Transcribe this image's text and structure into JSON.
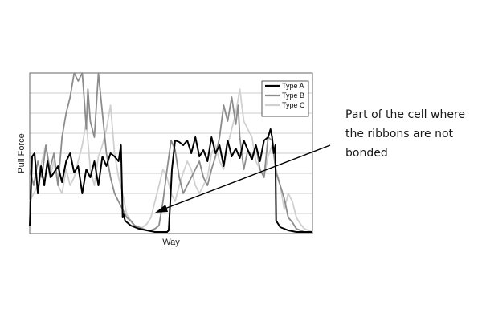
{
  "chart_data": {
    "type": "line",
    "title": "",
    "xlabel": "Way",
    "ylabel": "Pull Force",
    "xlim": [
      0,
      350
    ],
    "ylim": [
      0,
      100
    ],
    "grid": "horizontal",
    "legend_position": "top-right",
    "annotation": "Part of the cell where the ribbons are not bonded",
    "series": [
      {
        "name": "Type A",
        "color": "#000000",
        "x": [
          0,
          3,
          6,
          10,
          14,
          18,
          22,
          26,
          30,
          35,
          40,
          45,
          50,
          55,
          60,
          65,
          70,
          75,
          80,
          85,
          90,
          95,
          100,
          105,
          110,
          113,
          115,
          116,
          118,
          125,
          135,
          145,
          155,
          165,
          170,
          172,
          174,
          176,
          180,
          185,
          190,
          195,
          200,
          205,
          210,
          215,
          220,
          225,
          230,
          235,
          240,
          245,
          250,
          255,
          260,
          265,
          270,
          275,
          280,
          285,
          290,
          295,
          298,
          300,
          302,
          304,
          305,
          310,
          320,
          330,
          340,
          350
        ],
        "y": [
          5,
          48,
          50,
          25,
          42,
          30,
          45,
          35,
          38,
          42,
          32,
          45,
          50,
          38,
          42,
          25,
          40,
          35,
          45,
          30,
          48,
          42,
          50,
          48,
          45,
          55,
          10,
          12,
          8,
          5,
          3,
          2,
          1,
          1,
          1,
          2,
          20,
          40,
          58,
          57,
          55,
          58,
          50,
          60,
          48,
          52,
          45,
          60,
          50,
          55,
          42,
          58,
          48,
          53,
          47,
          58,
          52,
          46,
          55,
          45,
          58,
          60,
          65,
          60,
          50,
          55,
          8,
          4,
          2,
          1,
          1,
          1
        ]
      },
      {
        "name": "Type B",
        "color": "#8c8c8c",
        "x": [
          0,
          5,
          10,
          15,
          20,
          25,
          30,
          35,
          40,
          45,
          50,
          55,
          60,
          65,
          68,
          70,
          72,
          75,
          80,
          85,
          90,
          95,
          100,
          105,
          110,
          115,
          120,
          125,
          130,
          135,
          140,
          145,
          150,
          155,
          160,
          165,
          170,
          175,
          180,
          185,
          190,
          195,
          200,
          205,
          210,
          215,
          220,
          225,
          230,
          235,
          240,
          245,
          250,
          255,
          258,
          260,
          265,
          270,
          275,
          280,
          285,
          290,
          295,
          300,
          305,
          310,
          315,
          320,
          325,
          330,
          335,
          340,
          345,
          350
        ],
        "y": [
          40,
          30,
          45,
          35,
          55,
          40,
          50,
          30,
          60,
          75,
          85,
          110,
          95,
          115,
          80,
          65,
          90,
          70,
          60,
          100,
          75,
          50,
          35,
          25,
          20,
          15,
          10,
          8,
          5,
          4,
          3,
          2,
          2,
          3,
          5,
          20,
          40,
          58,
          52,
          35,
          25,
          30,
          35,
          40,
          45,
          35,
          30,
          40,
          48,
          60,
          80,
          70,
          85,
          68,
          80,
          60,
          40,
          52,
          48,
          55,
          40,
          35,
          60,
          58,
          38,
          30,
          22,
          10,
          7,
          3,
          2,
          1,
          1,
          1
        ]
      },
      {
        "name": "Type C",
        "color": "#d0d0d0",
        "x": [
          0,
          5,
          10,
          15,
          20,
          25,
          30,
          35,
          40,
          45,
          50,
          55,
          60,
          65,
          70,
          75,
          80,
          85,
          90,
          95,
          100,
          105,
          110,
          115,
          120,
          125,
          130,
          135,
          140,
          145,
          150,
          155,
          160,
          165,
          170,
          175,
          180,
          185,
          190,
          195,
          200,
          205,
          210,
          215,
          220,
          225,
          230,
          235,
          240,
          245,
          250,
          255,
          260,
          265,
          270,
          275,
          280,
          285,
          290,
          295,
          300,
          305,
          310,
          315,
          320,
          325,
          330,
          335,
          340,
          345,
          350
        ],
        "y": [
          20,
          25,
          30,
          45,
          55,
          35,
          45,
          30,
          25,
          40,
          30,
          35,
          45,
          55,
          70,
          40,
          30,
          48,
          55,
          65,
          80,
          50,
          35,
          25,
          12,
          8,
          4,
          3,
          4,
          6,
          10,
          20,
          30,
          40,
          35,
          25,
          20,
          30,
          38,
          45,
          40,
          30,
          25,
          30,
          35,
          50,
          55,
          45,
          40,
          55,
          65,
          75,
          90,
          70,
          65,
          60,
          45,
          40,
          35,
          48,
          55,
          40,
          30,
          15,
          25,
          20,
          10,
          6,
          3,
          2,
          1
        ]
      }
    ]
  }
}
